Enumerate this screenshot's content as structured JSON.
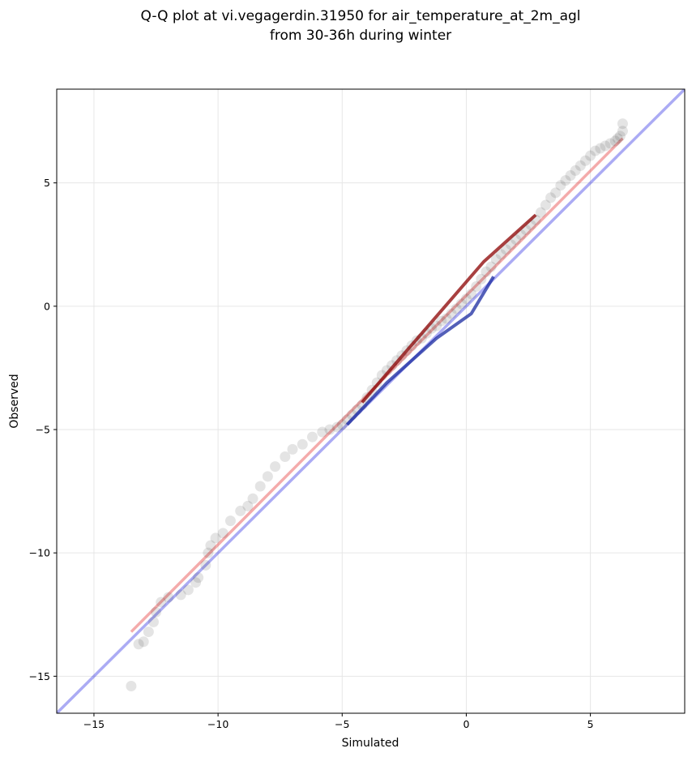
{
  "chart_data": {
    "type": "scatter",
    "title": "Q-Q plot at vi.vegagerdin.31950 for air_temperature_at_2m_agl",
    "subtitle": "from 30-36h during winter",
    "xlabel": "Simulated",
    "ylabel": "Observed",
    "xlim": [
      -16.5,
      8.8
    ],
    "ylim": [
      -16.5,
      8.8
    ],
    "xticks": [
      -15,
      -10,
      -5,
      0,
      5
    ],
    "yticks": [
      -15,
      -10,
      -5,
      0,
      5
    ],
    "xtick_labels": [
      "−15",
      "−10",
      "−5",
      "0",
      "5"
    ],
    "ytick_labels": [
      "−15",
      "−10",
      "−5",
      "0",
      "5"
    ],
    "grid": true,
    "colors": {
      "points": "#222222",
      "identity_line": "#0000dd",
      "fit_line": "#dd0000",
      "central_blue": "#1a2aa0",
      "central_red": "#8b0000"
    },
    "reference_lines": [
      {
        "kind": "identity",
        "x": [
          -16.5,
          8.8
        ],
        "y": [
          -16.5,
          8.8
        ],
        "color": "#0000dd"
      },
      {
        "kind": "fit",
        "x": [
          -13.5,
          6.3
        ],
        "y": [
          -13.2,
          6.8
        ],
        "color": "#dd0000"
      }
    ],
    "central_segments": [
      {
        "color": "#1a2aa0",
        "x": [
          -4.8,
          -3.2,
          -1.2,
          0.2,
          1.1
        ],
        "y": [
          -4.8,
          -3.1,
          -1.3,
          -0.3,
          1.2
        ]
      },
      {
        "color": "#8b0000",
        "x": [
          -4.2,
          0.7,
          2.8
        ],
        "y": [
          -3.9,
          1.8,
          3.7
        ]
      }
    ],
    "series": [
      {
        "x": [
          -13.5,
          -13.2,
          -13.0,
          -12.8,
          -12.6,
          -12.5,
          -12.3,
          -12.0,
          -11.5,
          -11.2,
          -10.9,
          -10.8,
          -10.5,
          -10.4,
          -10.3,
          -10.1,
          -9.8,
          -9.5,
          -9.1,
          -8.8,
          -8.6,
          -8.3,
          -8.0,
          -7.7,
          -7.3,
          -7.0,
          -6.6,
          -6.2,
          -5.8,
          -5.5,
          -5.2,
          -5.0,
          -4.8,
          -4.6,
          -4.4,
          -4.2,
          -4.0,
          -3.8,
          -3.6,
          -3.4,
          -3.2,
          -3.0,
          -2.8,
          -2.6,
          -2.4,
          -2.2,
          -2.0,
          -1.8,
          -1.6,
          -1.4,
          -1.2,
          -1.0,
          -0.8,
          -0.6,
          -0.4,
          -0.2,
          0.0,
          0.2,
          0.4,
          0.6,
          0.8,
          1.0,
          1.2,
          1.4,
          1.6,
          1.8,
          2.0,
          2.2,
          2.4,
          2.6,
          2.8,
          3.0,
          3.2,
          3.4,
          3.6,
          3.8,
          4.0,
          4.2,
          4.4,
          4.6,
          4.8,
          5.0,
          5.2,
          5.4,
          5.6,
          5.8,
          6.0,
          6.1,
          6.2,
          6.3,
          6.3
        ],
        "y": [
          -15.4,
          -13.7,
          -13.6,
          -13.2,
          -12.8,
          -12.4,
          -12.0,
          -11.8,
          -11.7,
          -11.5,
          -11.2,
          -11.0,
          -10.5,
          -10.0,
          -9.7,
          -9.4,
          -9.2,
          -8.7,
          -8.3,
          -8.1,
          -7.8,
          -7.3,
          -6.9,
          -6.5,
          -6.1,
          -5.8,
          -5.6,
          -5.3,
          -5.1,
          -5.0,
          -4.9,
          -4.8,
          -4.6,
          -4.4,
          -4.2,
          -4.0,
          -3.7,
          -3.4,
          -3.1,
          -2.8,
          -2.6,
          -2.4,
          -2.2,
          -2.0,
          -1.8,
          -1.6,
          -1.4,
          -1.3,
          -1.1,
          -0.9,
          -0.8,
          -0.6,
          -0.5,
          -0.3,
          -0.1,
          0.1,
          0.3,
          0.5,
          0.8,
          1.1,
          1.4,
          1.6,
          1.9,
          2.1,
          2.3,
          2.5,
          2.7,
          2.9,
          3.1,
          3.3,
          3.5,
          3.8,
          4.1,
          4.4,
          4.6,
          4.9,
          5.1,
          5.3,
          5.5,
          5.7,
          5.9,
          6.1,
          6.3,
          6.4,
          6.5,
          6.6,
          6.7,
          6.8,
          6.9,
          7.1,
          7.4
        ]
      }
    ]
  }
}
